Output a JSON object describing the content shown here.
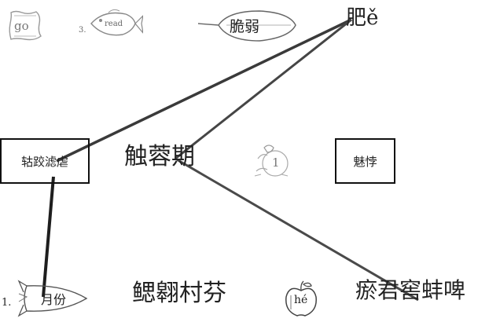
{
  "top_row": {
    "word_go": "go",
    "num_3": "3.",
    "word_read": "read",
    "leaf_text": "脆弱",
    "top_right_text": "肥ě"
  },
  "middle_row": {
    "box_left_text": "轱跤滤虐",
    "center_text": "触蓉期",
    "bird_number": "1",
    "box_right_text": "魅悖"
  },
  "bottom_row": {
    "num_1": "1.",
    "rocket_text": "月份",
    "center_text": "鳃翱村芬",
    "apple_text": "hé",
    "right_text": "瘀君窖蚌啤"
  },
  "colors": {
    "ink": "#222222",
    "line_dark": "#2b2b2b",
    "line_gray": "#4a4a4a",
    "sketch": "#9a9a9a"
  }
}
